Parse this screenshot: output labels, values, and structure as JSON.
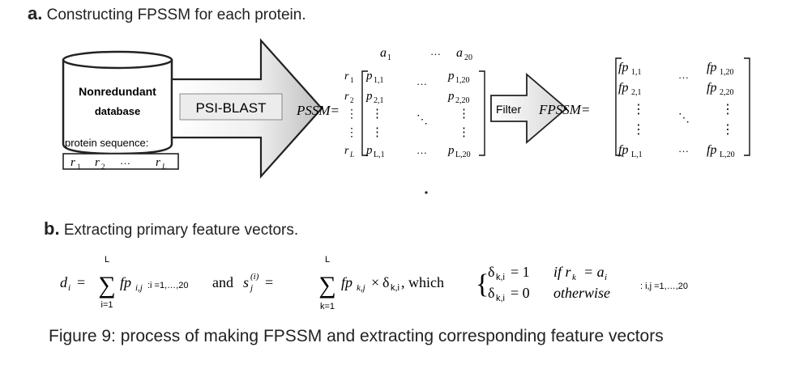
{
  "section_a": {
    "label": "a.",
    "title": "Constructing FPSSM for each protein."
  },
  "database": {
    "line1": "Nonredundant",
    "line2": "database"
  },
  "sequence": {
    "label": "protein sequence:",
    "items": [
      "r1",
      "r2",
      "…",
      "rL"
    ]
  },
  "arrow1_label": "PSI-BLAST",
  "pssm_label": "PSSM=",
  "pssm_cols": [
    "a1",
    "…",
    "a20"
  ],
  "pssm_rows": [
    "r1",
    "r2",
    "⋮",
    "⋮",
    "rL"
  ],
  "pssm_cells": {
    "r1c1": "p1,1",
    "r1c2": "p1,20",
    "r2c1": "p2,1",
    "r2c2": "p2,20",
    "rLc1": "pL,1",
    "rLc2": "pL,20"
  },
  "filter_label": "Filter",
  "fpssm_label": "FPSSM=",
  "fpssm_cells": {
    "r1c1": "fp1,1",
    "r1c2": "fp1,20",
    "r2c1": "fp2,1",
    "r2c2": "fp2,20",
    "rLc1": "fpL,1",
    "rLc2": "fpL,20"
  },
  "section_b": {
    "label": "b.",
    "title": "Extracting primary feature vectors."
  },
  "formula": {
    "d_lhs": "di =",
    "sum1_top": "L",
    "sum1_bottom": "i=1",
    "term1": "fpi,j",
    "range1": ":i =1,…,20",
    "and": "and",
    "s_lhs": "sj(i) =",
    "sum2_top": "L",
    "sum2_bottom": "k=1",
    "term2": "fpk,j × δk,i, which",
    "case1": "δk,i = 1   if rk = ai",
    "case2": "δk,i = 0   otherwise",
    "range2": ": i,j =1,…,20"
  },
  "caption": "Figure 9: process of making FPSSM and extracting corresponding feature vectors"
}
